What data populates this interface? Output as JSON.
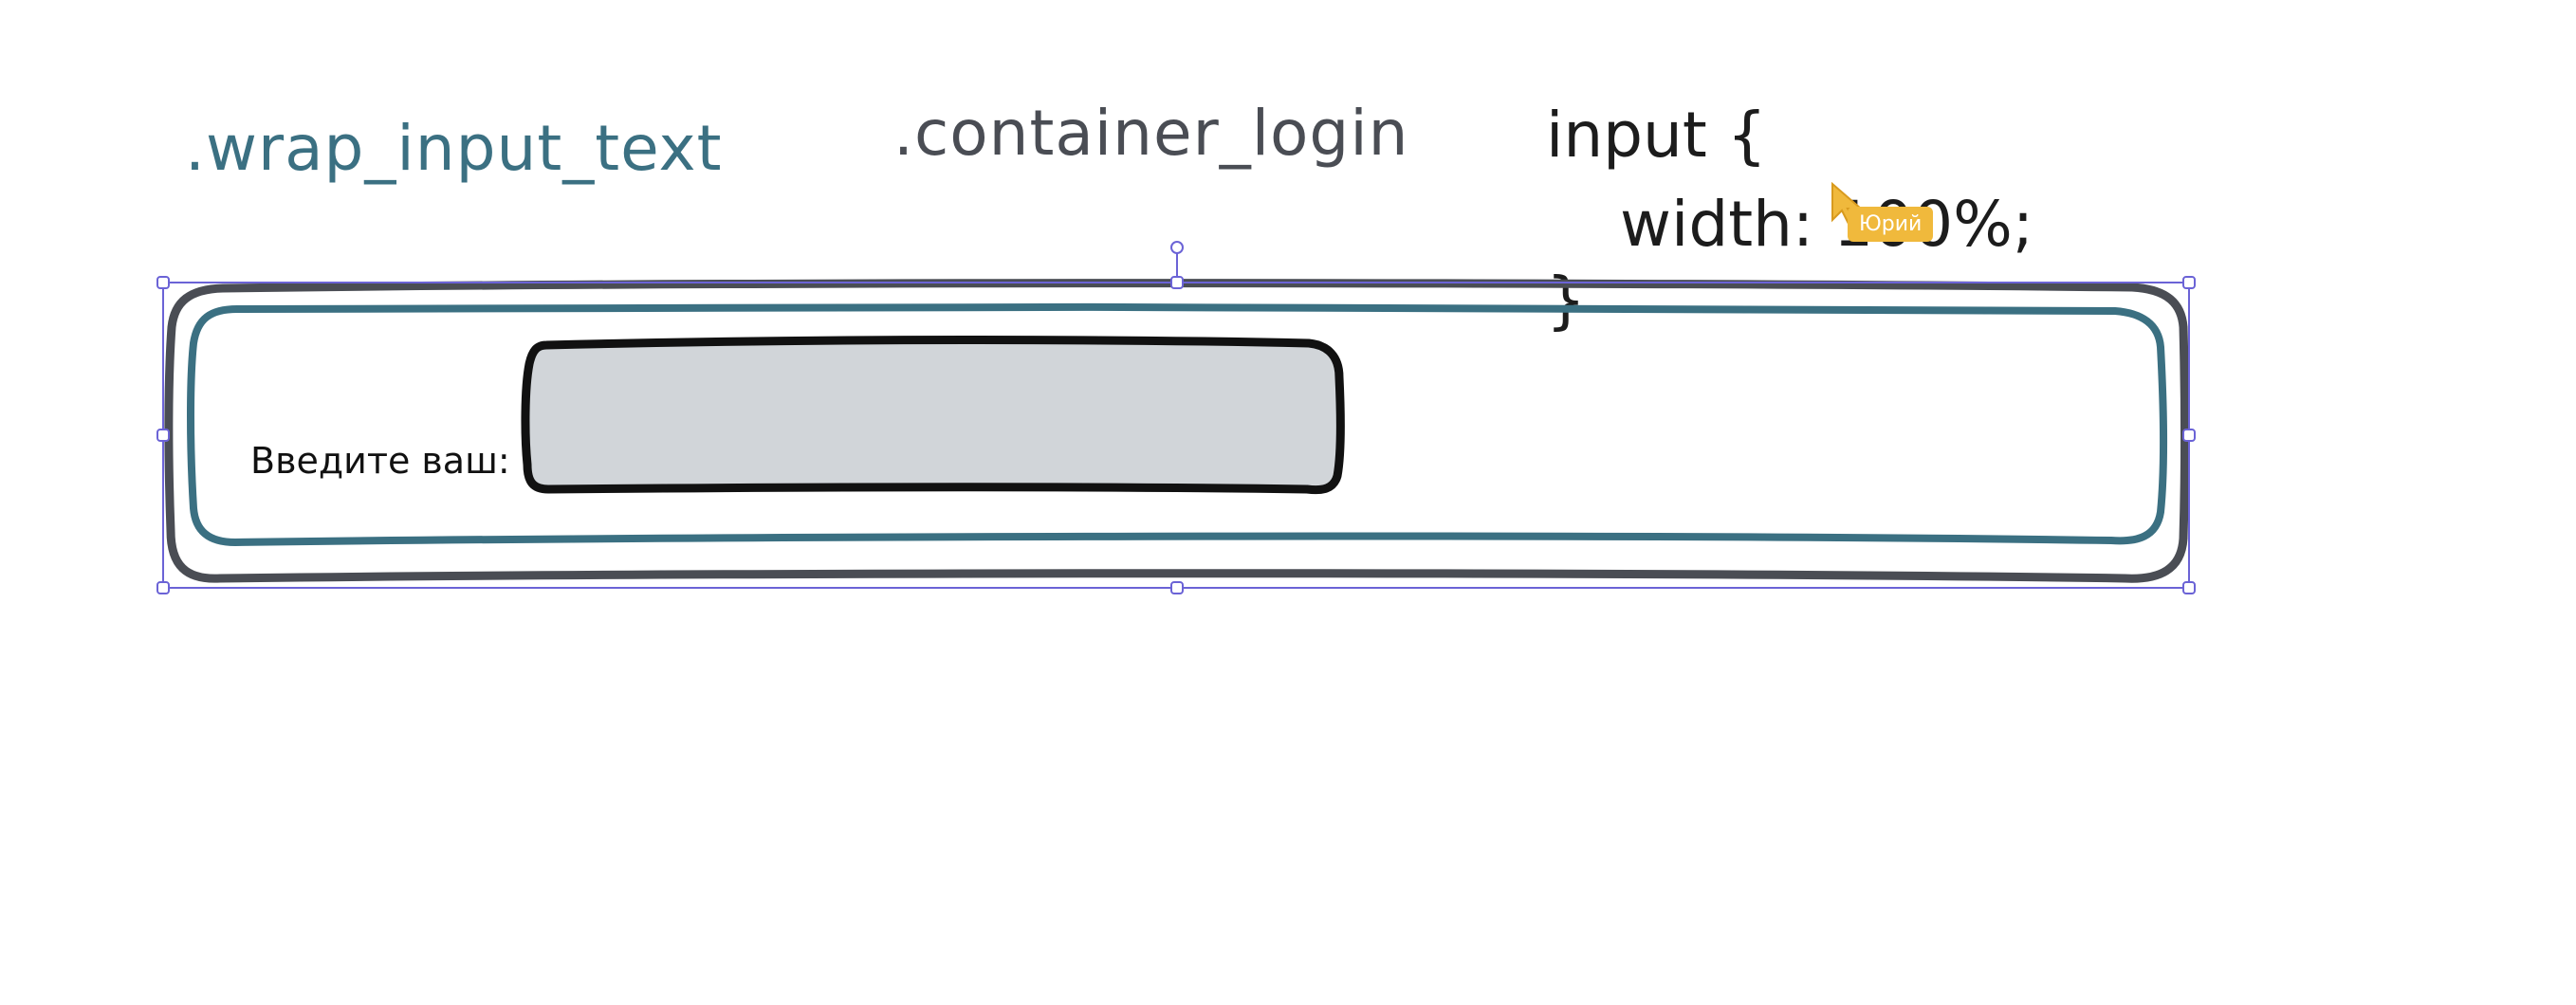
{
  "labels": {
    "wrap_class": ".wrap_input_text",
    "container_class": ".container_login"
  },
  "code": {
    "line1": "input {",
    "line2": "width: 100%;",
    "line3": "}"
  },
  "field": {
    "label": "Введите ваш:"
  },
  "cursor": {
    "user": "Юрий"
  },
  "colors": {
    "outer_stroke": "#4a4d54",
    "inner_stroke": "#3b7082",
    "input_fill": "#d1d5d9",
    "input_stroke": "#111111",
    "selection": "#6b63d6",
    "cursor_color": "#f0b93c"
  }
}
